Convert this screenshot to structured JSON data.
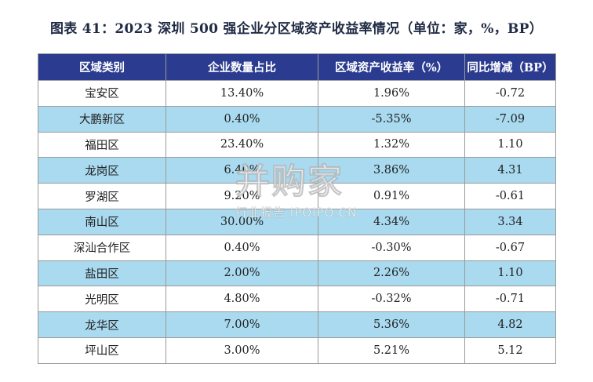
{
  "title": "图表 41：2023 深圳 500 强企业分区域资产收益率情况（单位：家，%，BP）",
  "table": {
    "headers": [
      "区域类别",
      "企业数量占比",
      "区域资产收益率（%）",
      "同比增减（BP）"
    ],
    "rows": [
      [
        "宝安区",
        "13.40%",
        "1.96%",
        "-0.72"
      ],
      [
        "大鹏新区",
        "0.40%",
        "-5.35%",
        "-7.09"
      ],
      [
        "福田区",
        "23.40%",
        "1.32%",
        "1.10"
      ],
      [
        "龙岗区",
        "6.40%",
        "3.86%",
        "4.31"
      ],
      [
        "罗湖区",
        "9.20%",
        "0.91%",
        "-0.61"
      ],
      [
        "南山区",
        "30.00%",
        "4.34%",
        "3.34"
      ],
      [
        "深汕合作区",
        "0.40%",
        "-0.30%",
        "-0.67"
      ],
      [
        "盐田区",
        "2.00%",
        "2.26%",
        "1.10"
      ],
      [
        "光明区",
        "4.80%",
        "-0.32%",
        "-0.71"
      ],
      [
        "龙华区",
        "7.00%",
        "5.36%",
        "4.82"
      ],
      [
        "坪山区",
        "3.00%",
        "5.21%",
        "5.12"
      ]
    ]
  },
  "watermark": {
    "main": "并购家",
    "sub": "行业报告 IPOIPO.CN"
  },
  "colors": {
    "header_bg": "#2b3b8f",
    "header_text": "#ffffff",
    "row_alt_bg": "#a9daf0",
    "row_bg": "#ffffff",
    "border": "#9a9a9a"
  }
}
